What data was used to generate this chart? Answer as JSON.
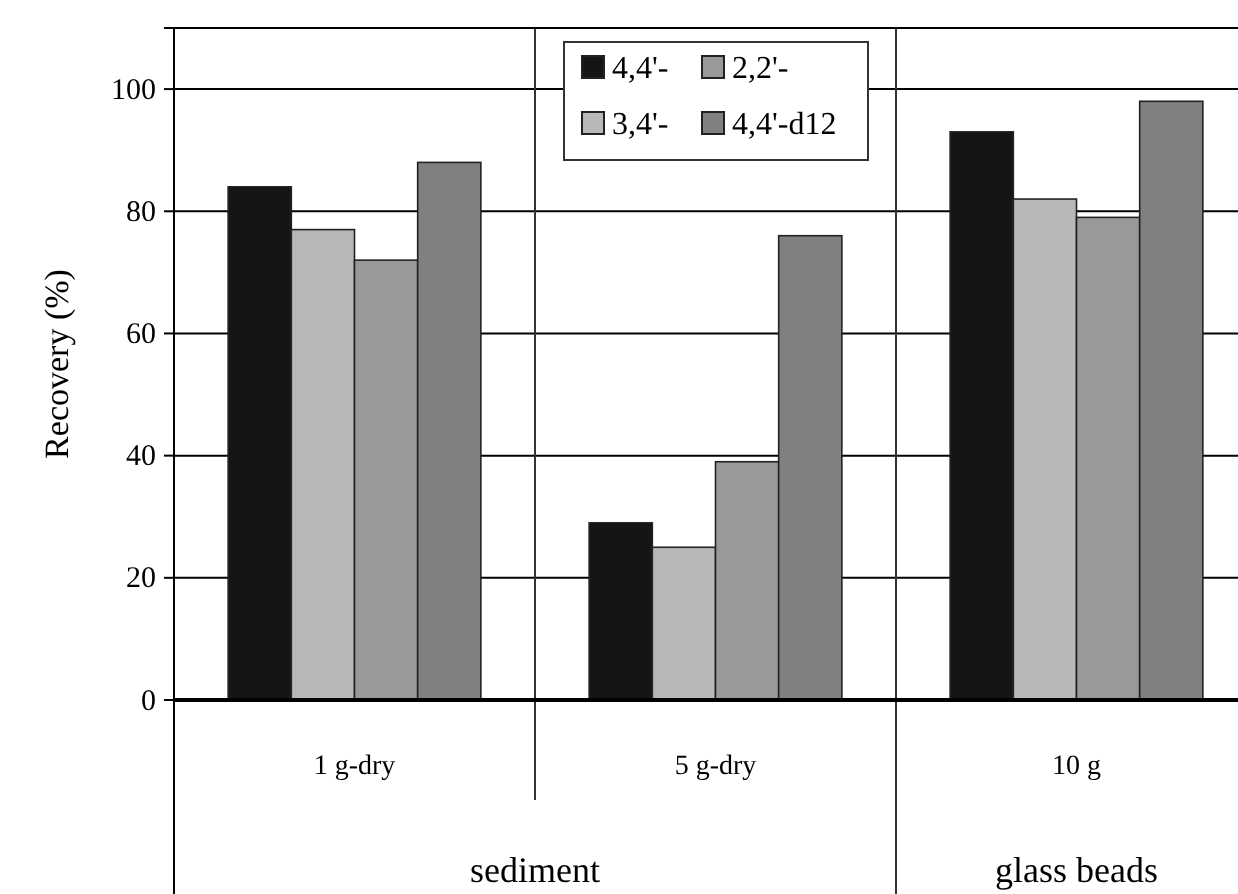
{
  "chart_data": {
    "type": "bar",
    "ylabel": "Recovery (%)",
    "categories": [
      "1 g-dry",
      "5 g-dry",
      "10 g"
    ],
    "series": [
      {
        "name": "4,4'-",
        "color": "#151515",
        "values": [
          84,
          29,
          93
        ]
      },
      {
        "name": "3,4'-",
        "color": "#b8b8b8",
        "values": [
          77,
          25,
          82
        ]
      },
      {
        "name": "2,2'-",
        "color": "#999999",
        "values": [
          72,
          39,
          79
        ]
      },
      {
        "name": "4,4'-d12",
        "color": "#808080",
        "values": [
          88,
          76,
          98
        ]
      }
    ],
    "ylim": [
      0,
      110
    ],
    "yticks": [
      0,
      20,
      40,
      60,
      80,
      100
    ],
    "grid": "y",
    "legend": "top",
    "annotations": [
      "sediment",
      "glass beads"
    ]
  }
}
